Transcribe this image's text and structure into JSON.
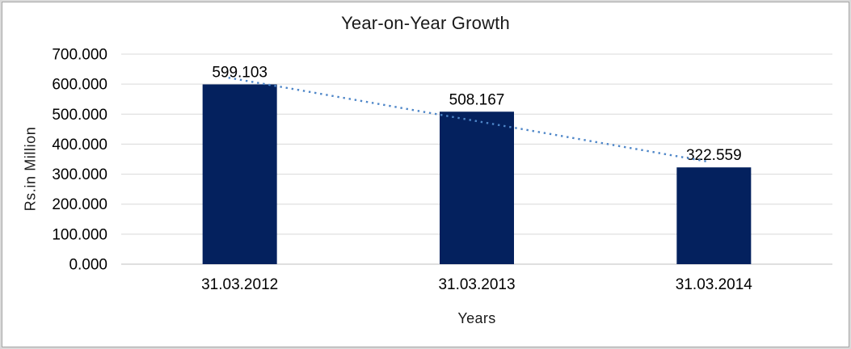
{
  "window": {
    "background_color": "#D9D9D9",
    "chart_background_color": "#FFFFFF",
    "frame_border_color": "#A6A6A6"
  },
  "chart_data": {
    "type": "bar",
    "title": "Year-on-Year Growth",
    "xlabel": "Years",
    "ylabel": "Rs.in Million",
    "categories": [
      "31.03.2012",
      "31.03.2013",
      "31.03.2014"
    ],
    "values": [
      599.103,
      508.167,
      322.559
    ],
    "value_labels": [
      "599.103",
      "508.167",
      "322.559"
    ],
    "ylim": [
      0,
      700
    ],
    "ytick_interval": 100,
    "ytick_labels": [
      "0.000",
      "100.000",
      "200.000",
      "300.000",
      "400.000",
      "500.000",
      "600.000",
      "700.000"
    ],
    "grid": true,
    "legend_position": "none",
    "bar_color": "#04215E",
    "gridline_color": "#D9D9D9",
    "axis_line_color": "#BFBFBF",
    "text_color": "#000000",
    "trendline": {
      "type": "linear",
      "style": "dotted",
      "color": "#4E86C8"
    }
  }
}
